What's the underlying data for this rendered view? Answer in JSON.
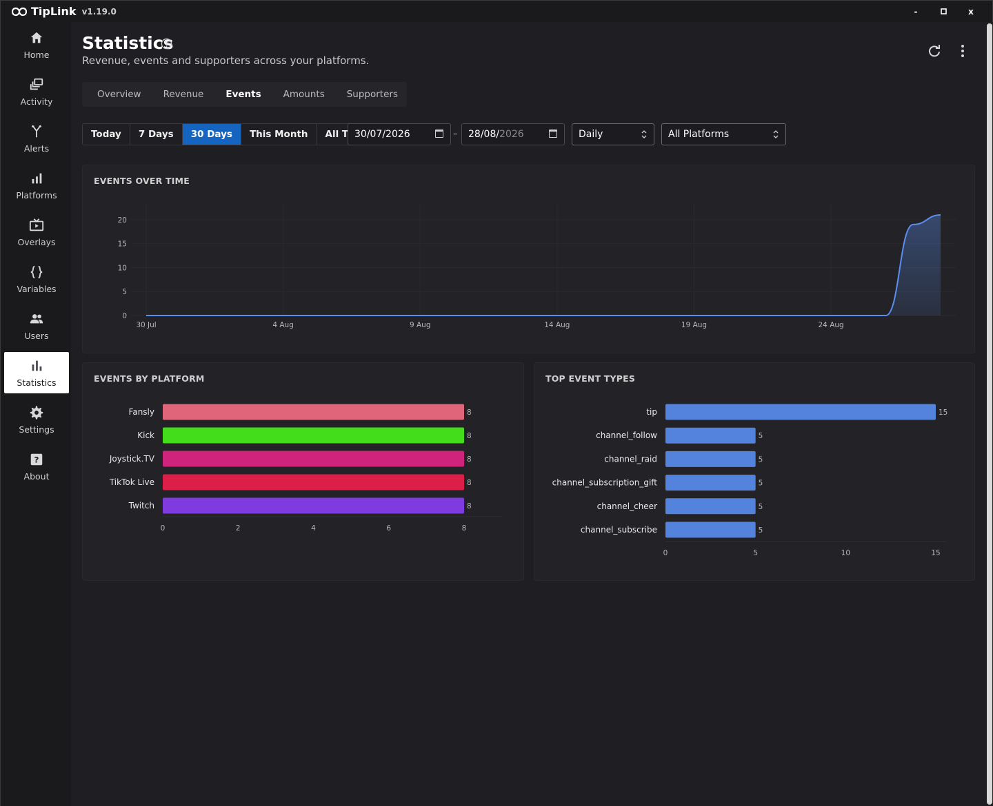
{
  "titlebar": {
    "app_name": "TipLink",
    "version": "v1.19.0",
    "minimize": "-",
    "maximize": "□",
    "close": "x"
  },
  "sidebar": {
    "items": [
      {
        "label": "Home",
        "icon": "home-icon"
      },
      {
        "label": "Activity",
        "icon": "activity-icon"
      },
      {
        "label": "Alerts",
        "icon": "alerts-icon"
      },
      {
        "label": "Platforms",
        "icon": "platforms-icon"
      },
      {
        "label": "Overlays",
        "icon": "overlays-icon"
      },
      {
        "label": "Variables",
        "icon": "variables-icon"
      },
      {
        "label": "Users",
        "icon": "users-icon"
      },
      {
        "label": "Statistics",
        "icon": "statistics-icon",
        "active": true
      },
      {
        "label": "Settings",
        "icon": "settings-icon"
      },
      {
        "label": "About",
        "icon": "about-icon"
      }
    ]
  },
  "header": {
    "title": "Statistics",
    "subtitle": "Revenue, events and supporters across your platforms."
  },
  "tabs": [
    {
      "label": "Overview"
    },
    {
      "label": "Revenue"
    },
    {
      "label": "Events",
      "active": true
    },
    {
      "label": "Amounts"
    },
    {
      "label": "Supporters"
    }
  ],
  "filters": {
    "ranges": [
      {
        "label": "Today"
      },
      {
        "label": "7 Days"
      },
      {
        "label": "30 Days",
        "active": true
      },
      {
        "label": "This Month"
      },
      {
        "label": "All Time"
      }
    ],
    "start_date": "30/07/2026",
    "end_date_prefix": "28/08/",
    "end_date_year": "2026",
    "date_separator": "–",
    "interval": "Daily",
    "platform": "All Platforms"
  },
  "colors": {
    "accent": "#1565c0",
    "line": "#5b8ef0",
    "fansly": "#e0657a",
    "kick": "#44dd1c",
    "joysticktv": "#d0247c",
    "tiktok": "#dc1f48",
    "twitch": "#7f3be0",
    "event_bar": "#5383dc"
  },
  "chart_data": [
    {
      "type": "area",
      "title": "EVENTS OVER TIME",
      "x": [
        "30 Jul",
        "31 Jul",
        "1 Aug",
        "2 Aug",
        "3 Aug",
        "4 Aug",
        "5 Aug",
        "6 Aug",
        "7 Aug",
        "8 Aug",
        "9 Aug",
        "10 Aug",
        "11 Aug",
        "12 Aug",
        "13 Aug",
        "14 Aug",
        "15 Aug",
        "16 Aug",
        "17 Aug",
        "18 Aug",
        "19 Aug",
        "20 Aug",
        "21 Aug",
        "22 Aug",
        "23 Aug",
        "24 Aug",
        "25 Aug",
        "26 Aug",
        "27 Aug",
        "28 Aug"
      ],
      "values": [
        0,
        0,
        0,
        0,
        0,
        0,
        0,
        0,
        0,
        0,
        0,
        0,
        0,
        0,
        0,
        0,
        0,
        0,
        0,
        0,
        0,
        0,
        0,
        0,
        0,
        0,
        0,
        0,
        19,
        21
      ],
      "x_ticks": [
        "30 Jul",
        "4 Aug",
        "9 Aug",
        "14 Aug",
        "19 Aug",
        "24 Aug"
      ],
      "y_ticks": [
        "0",
        "5",
        "10",
        "15",
        "20"
      ],
      "ylim": [
        0,
        21
      ]
    },
    {
      "type": "bar",
      "title": "EVENTS BY PLATFORM",
      "categories": [
        "Fansly",
        "Kick",
        "Joystick.TV",
        "TikTok Live",
        "Twitch"
      ],
      "values": [
        8,
        8,
        8,
        8,
        8
      ],
      "x_ticks": [
        "0",
        "2",
        "4",
        "6",
        "8"
      ],
      "xlim": [
        0,
        8
      ]
    },
    {
      "type": "bar",
      "title": "TOP EVENT TYPES",
      "categories": [
        "tip",
        "channel_follow",
        "channel_raid",
        "channel_subscription_gift",
        "channel_cheer",
        "channel_subscribe"
      ],
      "values": [
        15,
        5,
        5,
        5,
        5,
        5
      ],
      "x_ticks": [
        "0",
        "5",
        "10",
        "15"
      ],
      "xlim": [
        0,
        15
      ]
    }
  ]
}
